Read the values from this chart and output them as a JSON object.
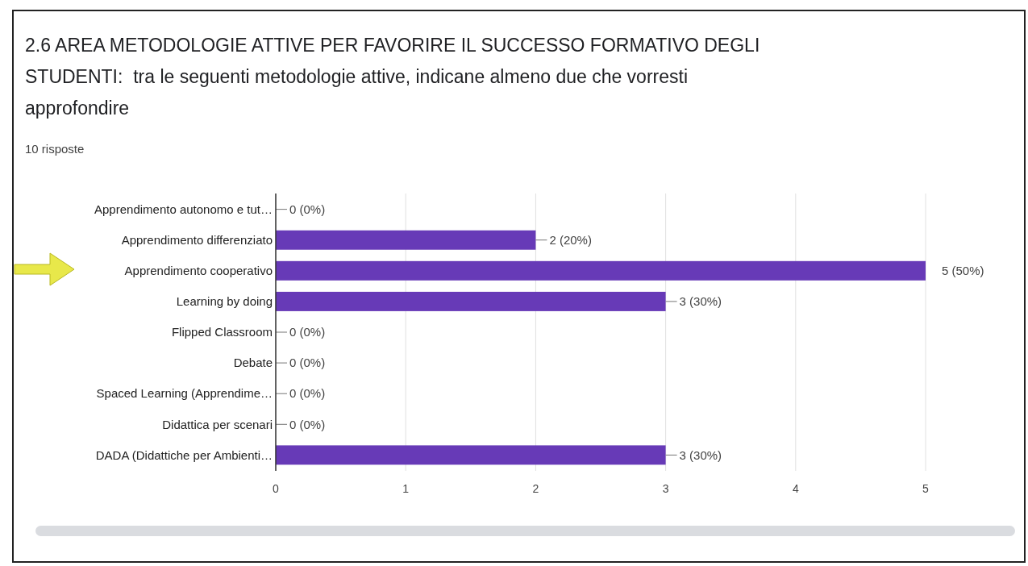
{
  "chart_data": {
    "type": "bar",
    "orientation": "horizontal",
    "title": "2.6 AREA METODOLOGIE ATTIVE PER FAVORIRE IL SUCCESSO FORMATIVO DEGLI STUDENTI:  tra le seguenti metodologie attive, indicane almeno due che vorresti approfondire",
    "subtitle": "10 risposte",
    "categories": [
      "Apprendimento autonomo e tut…",
      "Apprendimento differenziato",
      "Apprendimento cooperativo",
      "Learning by doing",
      "Flipped Classroom",
      "Debate",
      "Spaced Learning (Apprendime…",
      "Didattica per scenari",
      "DADA (Didattiche per Ambienti…"
    ],
    "values": [
      0,
      2,
      5,
      3,
      0,
      0,
      0,
      0,
      3
    ],
    "value_labels": [
      "0 (0%)",
      "2 (20%)",
      "5 (50%)",
      "3 (30%)",
      "0 (0%)",
      "0 (0%)",
      "0 (0%)",
      "0 (0%)",
      "3 (30%)"
    ],
    "color": "#673ab7",
    "xlim": [
      0,
      5
    ],
    "xticks": [
      0,
      1,
      2,
      3,
      4,
      5
    ],
    "grid": "x"
  }
}
